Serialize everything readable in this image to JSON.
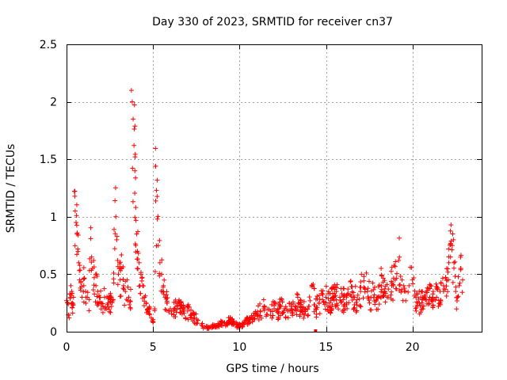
{
  "chart_data": {
    "type": "scatter",
    "title": "Day 330 of 2023, SRMTID for receiver cn37",
    "xlabel": "GPS time / hours",
    "ylabel": "SRMTID / TECUs",
    "xlim": [
      0,
      24
    ],
    "ylim": [
      0,
      2.5
    ],
    "xticks": [
      0,
      5,
      10,
      15,
      20
    ],
    "yticks": [
      0,
      0.5,
      1,
      1.5,
      2,
      2.5
    ],
    "xtick_labels": [
      "0",
      "5",
      "10",
      "15",
      "20"
    ],
    "ytick_labels": [
      "0",
      "0.5",
      "1",
      "1.5",
      "2",
      "2.5"
    ],
    "grid": true,
    "marker": "plus",
    "color": "#ff0000",
    "series": [
      {
        "name": "SRMTID",
        "points": [
          [
            0.0,
            0.27
          ],
          [
            0.1,
            0.24
          ],
          [
            0.15,
            0.12
          ],
          [
            0.2,
            0.33
          ],
          [
            0.25,
            0.4
          ],
          [
            0.3,
            0.35
          ],
          [
            0.35,
            0.25
          ],
          [
            0.4,
            0.3
          ],
          [
            0.45,
            1.22
          ],
          [
            0.5,
            1.05
          ],
          [
            0.55,
            0.95
          ],
          [
            0.6,
            0.85
          ],
          [
            0.65,
            0.72
          ],
          [
            0.7,
            0.6
          ],
          [
            0.75,
            0.45
          ],
          [
            0.8,
            0.38
          ],
          [
            0.9,
            0.3
          ],
          [
            1.0,
            0.4
          ],
          [
            1.1,
            0.35
          ],
          [
            1.2,
            0.3
          ],
          [
            1.3,
            0.28
          ],
          [
            1.4,
            0.81
          ],
          [
            1.45,
            0.65
          ],
          [
            1.5,
            0.55
          ],
          [
            1.6,
            0.47
          ],
          [
            1.7,
            0.4
          ],
          [
            1.8,
            0.35
          ],
          [
            1.9,
            0.3
          ],
          [
            2.0,
            0.25
          ],
          [
            2.1,
            0.22
          ],
          [
            2.2,
            0.3
          ],
          [
            2.3,
            0.2
          ],
          [
            2.4,
            0.25
          ],
          [
            2.5,
            0.3
          ],
          [
            2.6,
            0.22
          ],
          [
            2.7,
            0.28
          ],
          [
            2.8,
            1.14
          ],
          [
            2.85,
            1.0
          ],
          [
            2.9,
            0.8
          ],
          [
            2.95,
            0.62
          ],
          [
            3.0,
            0.5
          ],
          [
            3.1,
            0.45
          ],
          [
            3.2,
            0.55
          ],
          [
            3.3,
            0.4
          ],
          [
            3.4,
            0.35
          ],
          [
            3.5,
            0.45
          ],
          [
            3.6,
            0.3
          ],
          [
            3.7,
            0.2
          ],
          [
            3.75,
            2.1
          ],
          [
            3.8,
            2.0
          ],
          [
            3.85,
            1.85
          ],
          [
            3.9,
            1.62
          ],
          [
            3.95,
            1.4
          ],
          [
            4.0,
            1.08
          ],
          [
            4.05,
            0.85
          ],
          [
            4.1,
            0.7
          ],
          [
            4.2,
            0.6
          ],
          [
            4.3,
            0.5
          ],
          [
            4.4,
            0.4
          ],
          [
            4.5,
            0.3
          ],
          [
            4.6,
            0.25
          ],
          [
            4.7,
            0.2
          ],
          [
            4.8,
            0.15
          ],
          [
            4.9,
            0.12
          ],
          [
            5.0,
            0.08
          ],
          [
            5.1,
            0.2
          ],
          [
            5.15,
            1.44
          ],
          [
            5.2,
            1.23
          ],
          [
            5.25,
            0.98
          ],
          [
            5.3,
            0.75
          ],
          [
            5.4,
            0.6
          ],
          [
            5.5,
            0.5
          ],
          [
            5.6,
            0.4
          ],
          [
            5.7,
            0.3
          ],
          [
            5.8,
            0.25
          ],
          [
            6.0,
            0.2
          ],
          [
            6.2,
            0.18
          ],
          [
            6.4,
            0.22
          ],
          [
            6.6,
            0.2
          ],
          [
            6.8,
            0.16
          ],
          [
            7.0,
            0.18
          ],
          [
            7.2,
            0.15
          ],
          [
            7.4,
            0.12
          ],
          [
            7.6,
            0.1
          ],
          [
            7.8,
            0.06
          ],
          [
            8.0,
            0.04
          ],
          [
            8.2,
            0.03
          ],
          [
            8.4,
            0.05
          ],
          [
            8.6,
            0.04
          ],
          [
            8.8,
            0.06
          ],
          [
            9.0,
            0.08
          ],
          [
            9.2,
            0.05
          ],
          [
            9.4,
            0.1
          ],
          [
            9.6,
            0.08
          ],
          [
            9.8,
            0.06
          ],
          [
            10.0,
            0.05
          ],
          [
            10.2,
            0.07
          ],
          [
            10.4,
            0.09
          ],
          [
            10.6,
            0.12
          ],
          [
            10.8,
            0.14
          ],
          [
            11.0,
            0.16
          ],
          [
            11.2,
            0.18
          ],
          [
            11.4,
            0.2
          ],
          [
            11.6,
            0.15
          ],
          [
            11.8,
            0.18
          ],
          [
            12.0,
            0.2
          ],
          [
            12.2,
            0.17
          ],
          [
            12.4,
            0.22
          ],
          [
            12.6,
            0.2
          ],
          [
            12.8,
            0.18
          ],
          [
            13.0,
            0.2
          ],
          [
            13.2,
            0.22
          ],
          [
            13.4,
            0.25
          ],
          [
            13.6,
            0.18
          ],
          [
            13.8,
            0.2
          ],
          [
            14.0,
            0.22
          ],
          [
            14.2,
            0.4
          ],
          [
            14.4,
            0.2
          ],
          [
            14.6,
            0.25
          ],
          [
            14.8,
            0.28
          ],
          [
            15.0,
            0.3
          ],
          [
            15.2,
            0.25
          ],
          [
            15.4,
            0.3
          ],
          [
            15.6,
            0.35
          ],
          [
            15.8,
            0.3
          ],
          [
            16.0,
            0.28
          ],
          [
            16.2,
            0.25
          ],
          [
            16.4,
            0.32
          ],
          [
            16.6,
            0.3
          ],
          [
            16.8,
            0.28
          ],
          [
            17.0,
            0.35
          ],
          [
            17.2,
            0.48
          ],
          [
            17.4,
            0.35
          ],
          [
            17.6,
            0.3
          ],
          [
            17.8,
            0.32
          ],
          [
            18.0,
            0.3
          ],
          [
            18.2,
            0.4
          ],
          [
            18.4,
            0.35
          ],
          [
            18.6,
            0.3
          ],
          [
            18.8,
            0.4
          ],
          [
            19.0,
            0.45
          ],
          [
            19.2,
            0.62
          ],
          [
            19.4,
            0.45
          ],
          [
            19.6,
            0.35
          ],
          [
            19.8,
            0.4
          ],
          [
            20.0,
            0.45
          ],
          [
            20.2,
            0.3
          ],
          [
            20.4,
            0.25
          ],
          [
            20.6,
            0.3
          ],
          [
            20.8,
            0.28
          ],
          [
            21.0,
            0.3
          ],
          [
            21.2,
            0.35
          ],
          [
            21.4,
            0.3
          ],
          [
            21.6,
            0.35
          ],
          [
            21.8,
            0.4
          ],
          [
            22.0,
            0.45
          ],
          [
            22.1,
            0.6
          ],
          [
            22.2,
            0.65
          ],
          [
            22.3,
            0.75
          ],
          [
            22.4,
            0.6
          ],
          [
            22.5,
            0.35
          ],
          [
            22.6,
            0.3
          ],
          [
            22.7,
            0.4
          ],
          [
            22.8,
            0.55
          ],
          [
            22.9,
            0.45
          ]
        ],
        "extra_random_points": 800
      }
    ],
    "annotations": [
      {
        "x": 14.4,
        "y": 0.0,
        "type": "small-square-marker"
      }
    ]
  }
}
